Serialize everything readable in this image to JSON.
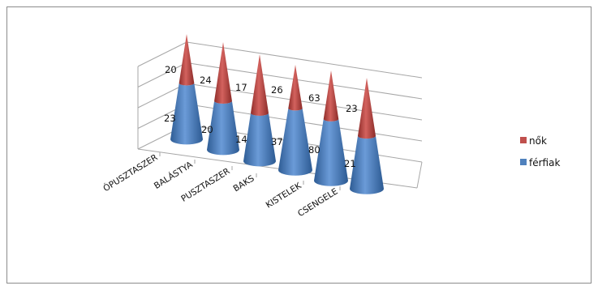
{
  "chart_data": {
    "type": "bar",
    "subtype": "3d-stacked-cone",
    "title": "",
    "xlabel": "",
    "ylabel": "",
    "categories": [
      "ÓPUSZTASZER",
      "BALÁSTYA",
      "PUSZTASZER",
      "BAKS",
      "KISTELEK",
      "CSENGELE"
    ],
    "series": [
      {
        "name": "férfiak",
        "values": [
          23,
          20,
          14,
          37,
          80,
          21
        ],
        "color": "#4f81bd"
      },
      {
        "name": "nők",
        "values": [
          20,
          24,
          17,
          26,
          63,
          23
        ],
        "color": "#c0504d"
      }
    ],
    "legend_position": "right",
    "grid": true
  }
}
